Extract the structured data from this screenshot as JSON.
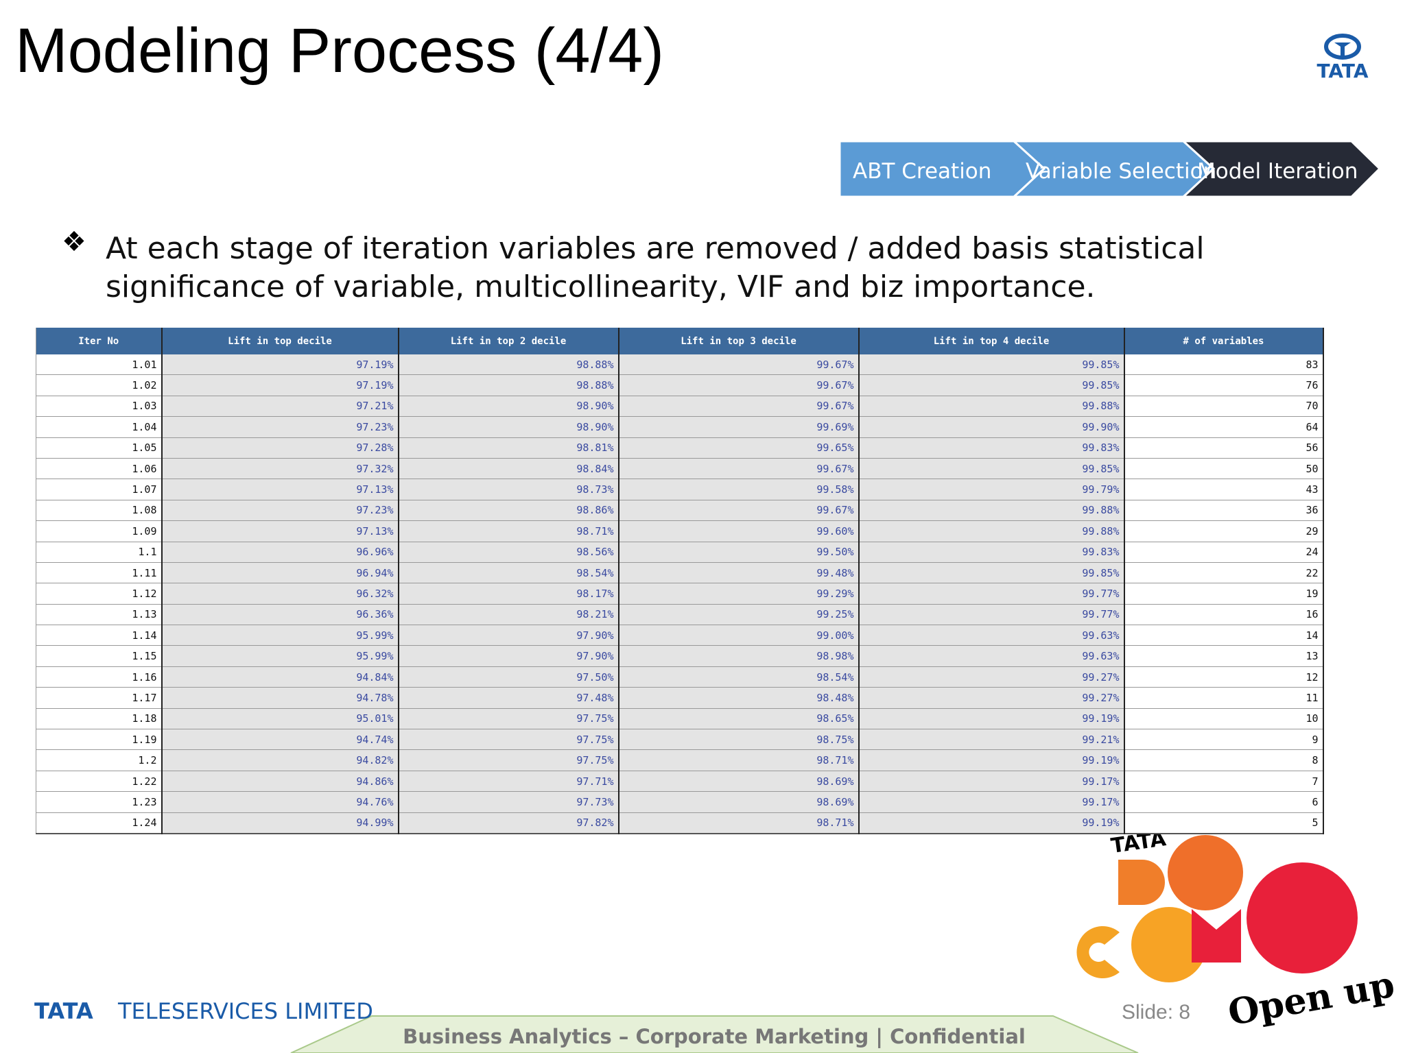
{
  "header": {
    "title": "Modeling Process (4/4)",
    "logo": "TATA"
  },
  "process": [
    "ABT Creation",
    "Variable Selection",
    "Model Iteration"
  ],
  "bullet": "At each stage of iteration variables are removed / added basis statistical significance of variable, multicollinearity, VIF and biz importance.",
  "table": {
    "columns": [
      "Iter No",
      "Lift in top decile",
      "Lift in top 2 decile",
      "Lift in top 3 decile",
      "Lift in top 4 decile",
      "# of variables"
    ],
    "rows": [
      [
        "1.01",
        "97.19%",
        "98.88%",
        "99.67%",
        "99.85%",
        "83"
      ],
      [
        "1.02",
        "97.19%",
        "98.88%",
        "99.67%",
        "99.85%",
        "76"
      ],
      [
        "1.03",
        "97.21%",
        "98.90%",
        "99.67%",
        "99.88%",
        "70"
      ],
      [
        "1.04",
        "97.23%",
        "98.90%",
        "99.69%",
        "99.90%",
        "64"
      ],
      [
        "1.05",
        "97.28%",
        "98.81%",
        "99.65%",
        "99.83%",
        "56"
      ],
      [
        "1.06",
        "97.32%",
        "98.84%",
        "99.67%",
        "99.85%",
        "50"
      ],
      [
        "1.07",
        "97.13%",
        "98.73%",
        "99.58%",
        "99.79%",
        "43"
      ],
      [
        "1.08",
        "97.23%",
        "98.86%",
        "99.67%",
        "99.88%",
        "36"
      ],
      [
        "1.09",
        "97.13%",
        "98.71%",
        "99.60%",
        "99.88%",
        "29"
      ],
      [
        "1.1",
        "96.96%",
        "98.56%",
        "99.50%",
        "99.83%",
        "24"
      ],
      [
        "1.11",
        "96.94%",
        "98.54%",
        "99.48%",
        "99.85%",
        "22"
      ],
      [
        "1.12",
        "96.32%",
        "98.17%",
        "99.29%",
        "99.77%",
        "19"
      ],
      [
        "1.13",
        "96.36%",
        "98.21%",
        "99.25%",
        "99.77%",
        "16"
      ],
      [
        "1.14",
        "95.99%",
        "97.90%",
        "99.00%",
        "99.63%",
        "14"
      ],
      [
        "1.15",
        "95.99%",
        "97.90%",
        "98.98%",
        "99.63%",
        "13"
      ],
      [
        "1.16",
        "94.84%",
        "97.50%",
        "98.54%",
        "99.27%",
        "12"
      ],
      [
        "1.17",
        "94.78%",
        "97.48%",
        "98.48%",
        "99.27%",
        "11"
      ],
      [
        "1.18",
        "95.01%",
        "97.75%",
        "98.65%",
        "99.19%",
        "10"
      ],
      [
        "1.19",
        "94.74%",
        "97.75%",
        "98.75%",
        "99.21%",
        "9"
      ],
      [
        "1.2",
        "94.82%",
        "97.75%",
        "98.71%",
        "99.19%",
        "8"
      ],
      [
        "1.22",
        "94.86%",
        "97.71%",
        "98.69%",
        "99.17%",
        "7"
      ],
      [
        "1.23",
        "94.76%",
        "97.73%",
        "98.69%",
        "99.17%",
        "6"
      ],
      [
        "1.24",
        "94.99%",
        "97.82%",
        "98.71%",
        "99.19%",
        "5"
      ]
    ]
  },
  "footer": {
    "company_mark": "TATA",
    "company_name": "TELESERVICES LIMITED",
    "slide": "Slide: 8",
    "center": "Business Analytics – Corporate Marketing  |  Confidential"
  },
  "brand": {
    "mark": "TATA",
    "slogan": "Open up"
  }
}
